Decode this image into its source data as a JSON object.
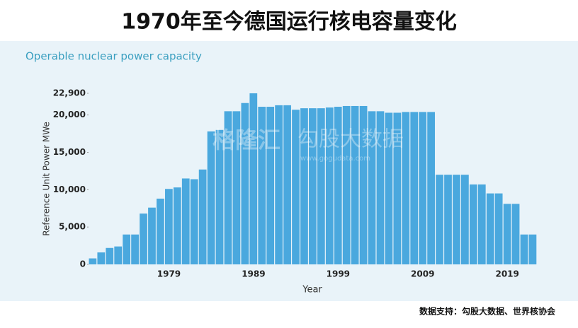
{
  "chart_data": {
    "type": "bar",
    "title": "1970年至今德国运行核电容量变化",
    "subtitle": "Operable nuclear power capacity",
    "y_label": "Reference Unit Power MWe",
    "x_label": "Year",
    "source": "数据支持：勾股大数据、世界核协会",
    "watermark": [
      "格隆汇",
      "勾股大数据",
      "www.gogudata.com"
    ],
    "categories": [
      null,
      null,
      null,
      null,
      null,
      null,
      null,
      null,
      null,
      "1979",
      null,
      null,
      null,
      null,
      null,
      null,
      null,
      null,
      null,
      "1989",
      null,
      null,
      null,
      null,
      null,
      null,
      null,
      null,
      null,
      "1999",
      null,
      null,
      null,
      null,
      null,
      null,
      null,
      null,
      null,
      "2009",
      null,
      null,
      null,
      null,
      null,
      null,
      null,
      null,
      null,
      "2019",
      null,
      null,
      null
    ],
    "values": [
      800,
      1600,
      2200,
      2400,
      4000,
      4000,
      6800,
      7600,
      8800,
      10100,
      10300,
      11500,
      11400,
      12700,
      17800,
      18000,
      20500,
      20500,
      21600,
      22900,
      21100,
      21100,
      21300,
      21300,
      20700,
      20900,
      20900,
      20900,
      21000,
      21100,
      21200,
      21200,
      21200,
      20500,
      20500,
      20300,
      20300,
      20400,
      20400,
      20400,
      20400,
      12000,
      12000,
      12000,
      12000,
      10700,
      10700,
      9500,
      9500,
      8100,
      8100,
      4000,
      4000
    ],
    "color": "#4aa8de",
    "ylim": [
      0,
      22900
    ],
    "yticks": [
      0,
      {
        "value": 5000,
        "label": "5,000"
      },
      {
        "value": 10000,
        "label": "10,000"
      },
      {
        "value": 15000,
        "label": "15,000"
      },
      {
        "value": 20000,
        "label": "20,000"
      },
      {
        "value": 22900,
        "label": "22,900"
      }
    ],
    "grid": false
  }
}
